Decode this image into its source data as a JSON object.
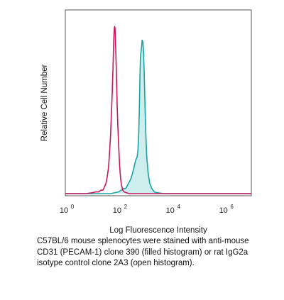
{
  "chart_data": {
    "type": "histogram",
    "xlabel": "Log Fluorescence Intensity",
    "ylabel": "Relative Cell Number",
    "x_scale": "log",
    "xlim": [
      1,
      10000000
    ],
    "ylim": [
      0,
      1
    ],
    "x_ticks": [
      {
        "base": "10",
        "exp": "0",
        "value": 1
      },
      {
        "base": "10",
        "exp": "2",
        "value": 100
      },
      {
        "base": "10",
        "exp": "4",
        "value": 10000
      },
      {
        "base": "10",
        "exp": "6",
        "value": 1000000
      }
    ],
    "grid": false,
    "legend": "none",
    "series": [
      {
        "style": "open",
        "color": "#c8175d",
        "x": [
          1,
          6,
          10,
          14,
          18,
          22,
          26,
          30,
          34,
          38,
          42,
          46,
          50,
          54,
          58,
          62,
          64,
          66,
          68,
          70,
          72,
          74,
          76,
          78,
          82,
          86,
          90,
          94,
          100,
          106,
          112,
          120,
          130,
          145,
          165,
          200,
          260,
          400,
          1000,
          10000,
          1000000,
          10000000
        ],
        "y": [
          0.0,
          0.0,
          0.005,
          0.01,
          0.01,
          0.02,
          0.02,
          0.04,
          0.06,
          0.1,
          0.15,
          0.23,
          0.33,
          0.45,
          0.58,
          0.72,
          0.8,
          0.87,
          0.93,
          0.96,
          0.97,
          0.96,
          0.92,
          0.86,
          0.75,
          0.62,
          0.5,
          0.4,
          0.3,
          0.22,
          0.15,
          0.09,
          0.05,
          0.02,
          0.01,
          0.005,
          0.0,
          0.0,
          0.0,
          0.0,
          0.0,
          0.0
        ]
      },
      {
        "style": "filled",
        "color": "#1aa3a3",
        "fill": "#cdeeed",
        "x": [
          1,
          50,
          100,
          130,
          160,
          190,
          220,
          260,
          300,
          340,
          380,
          420,
          460,
          500,
          540,
          580,
          610,
          640,
          660,
          680,
          700,
          740,
          780,
          830,
          880,
          930,
          980,
          1050,
          1150,
          1300,
          1500,
          1800,
          2200,
          3000,
          5000,
          10000,
          1000000,
          10000000
        ],
        "y": [
          0.0,
          0.0,
          0.01,
          0.02,
          0.03,
          0.03,
          0.05,
          0.07,
          0.09,
          0.12,
          0.15,
          0.18,
          0.2,
          0.21,
          0.25,
          0.35,
          0.5,
          0.65,
          0.75,
          0.8,
          0.82,
          0.85,
          0.89,
          0.88,
          0.82,
          0.7,
          0.55,
          0.38,
          0.22,
          0.12,
          0.06,
          0.03,
          0.01,
          0.005,
          0.0,
          0.0,
          0.0,
          0.0
        ]
      }
    ]
  },
  "caption": "C57BL/6 mouse splenocytes were stained with anti-mouse CD31 (PECAM-1) clone 390 (filled histogram) or rat IgG2a isotype control clone 2A3 (open histogram)."
}
